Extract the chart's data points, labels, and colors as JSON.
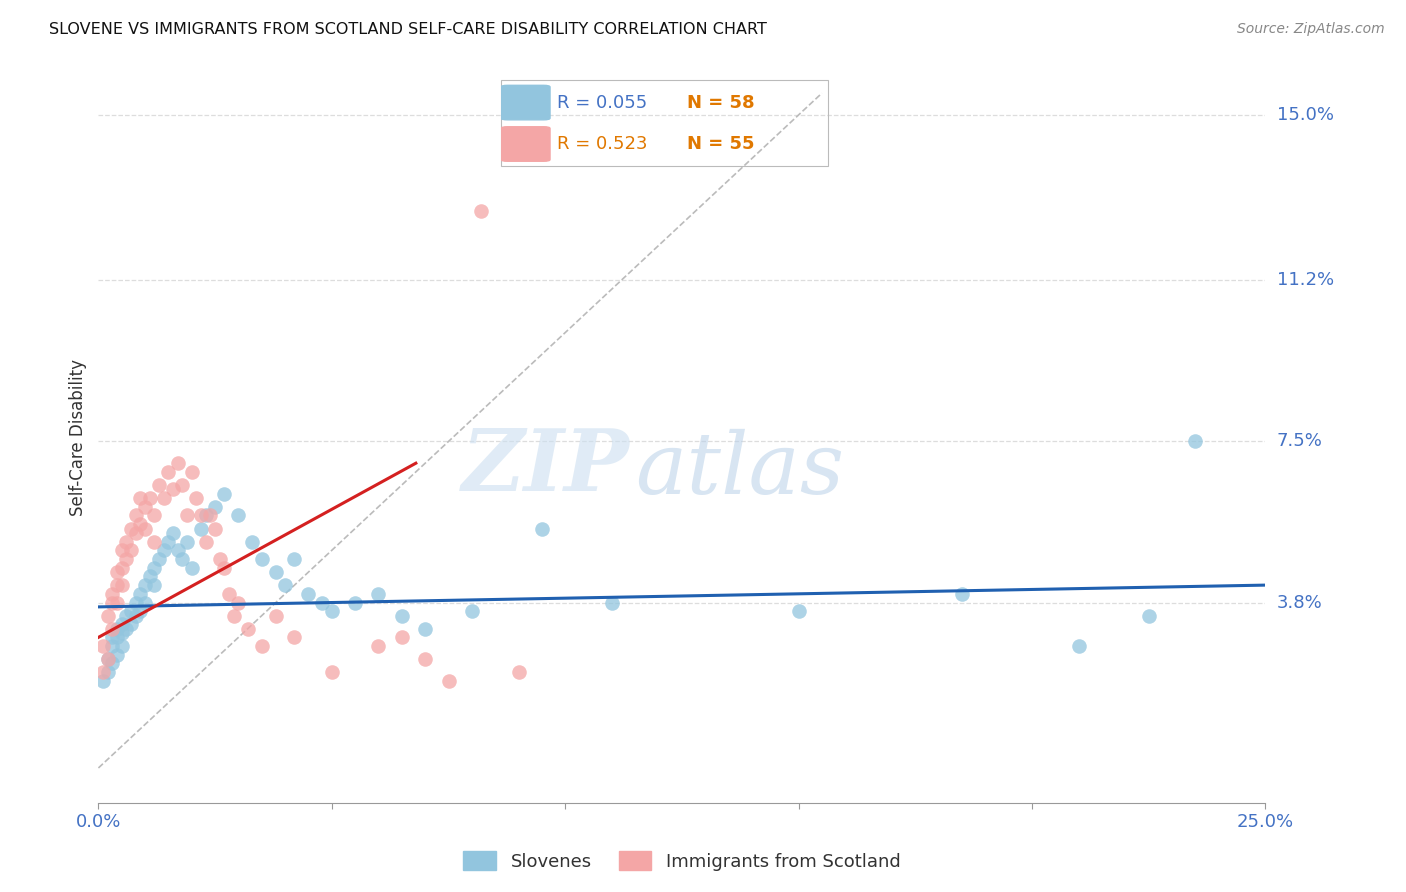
{
  "title": "SLOVENE VS IMMIGRANTS FROM SCOTLAND SELF-CARE DISABILITY CORRELATION CHART",
  "source": "Source: ZipAtlas.com",
  "ylabel": "Self-Care Disability",
  "ytick_vals": [
    0.038,
    0.075,
    0.112,
    0.15
  ],
  "ytick_labels": [
    "3.8%",
    "7.5%",
    "11.2%",
    "15.0%"
  ],
  "xlim": [
    0.0,
    0.25
  ],
  "ylim": [
    -0.008,
    0.16
  ],
  "watermark_zip": "ZIP",
  "watermark_atlas": "atlas",
  "legend_blue_r": "0.055",
  "legend_blue_n": "58",
  "legend_pink_r": "0.523",
  "legend_pink_n": "55",
  "legend_label_blue": "Slovenes",
  "legend_label_pink": "Immigrants from Scotland",
  "blue_color": "#92c5de",
  "pink_color": "#f4a6a6",
  "line_blue_color": "#2060b0",
  "line_pink_color": "#d42020",
  "diagonal_color": "#bbbbbb",
  "grid_color": "#dddddd",
  "blue_scatter_x": [
    0.001,
    0.002,
    0.002,
    0.003,
    0.003,
    0.003,
    0.004,
    0.004,
    0.004,
    0.005,
    0.005,
    0.005,
    0.006,
    0.006,
    0.007,
    0.007,
    0.008,
    0.008,
    0.009,
    0.009,
    0.01,
    0.01,
    0.011,
    0.012,
    0.012,
    0.013,
    0.014,
    0.015,
    0.016,
    0.017,
    0.018,
    0.019,
    0.02,
    0.022,
    0.023,
    0.025,
    0.027,
    0.03,
    0.033,
    0.035,
    0.038,
    0.04,
    0.042,
    0.045,
    0.048,
    0.05,
    0.055,
    0.06,
    0.065,
    0.07,
    0.08,
    0.095,
    0.11,
    0.15,
    0.185,
    0.21,
    0.225,
    0.235
  ],
  "blue_scatter_y": [
    0.02,
    0.025,
    0.022,
    0.03,
    0.028,
    0.024,
    0.032,
    0.03,
    0.026,
    0.033,
    0.031,
    0.028,
    0.035,
    0.032,
    0.036,
    0.033,
    0.038,
    0.035,
    0.04,
    0.036,
    0.042,
    0.038,
    0.044,
    0.046,
    0.042,
    0.048,
    0.05,
    0.052,
    0.054,
    0.05,
    0.048,
    0.052,
    0.046,
    0.055,
    0.058,
    0.06,
    0.063,
    0.058,
    0.052,
    0.048,
    0.045,
    0.042,
    0.048,
    0.04,
    0.038,
    0.036,
    0.038,
    0.04,
    0.035,
    0.032,
    0.036,
    0.055,
    0.038,
    0.036,
    0.04,
    0.028,
    0.035,
    0.075
  ],
  "pink_scatter_x": [
    0.001,
    0.001,
    0.002,
    0.002,
    0.003,
    0.003,
    0.003,
    0.004,
    0.004,
    0.004,
    0.005,
    0.005,
    0.005,
    0.006,
    0.006,
    0.007,
    0.007,
    0.008,
    0.008,
    0.009,
    0.009,
    0.01,
    0.01,
    0.011,
    0.012,
    0.012,
    0.013,
    0.014,
    0.015,
    0.016,
    0.017,
    0.018,
    0.019,
    0.02,
    0.021,
    0.022,
    0.023,
    0.024,
    0.025,
    0.026,
    0.027,
    0.028,
    0.029,
    0.03,
    0.032,
    0.035,
    0.038,
    0.042,
    0.05,
    0.06,
    0.065,
    0.07,
    0.075,
    0.082,
    0.09
  ],
  "pink_scatter_y": [
    0.028,
    0.022,
    0.035,
    0.025,
    0.04,
    0.038,
    0.032,
    0.045,
    0.042,
    0.038,
    0.05,
    0.046,
    0.042,
    0.052,
    0.048,
    0.055,
    0.05,
    0.058,
    0.054,
    0.062,
    0.056,
    0.06,
    0.055,
    0.062,
    0.058,
    0.052,
    0.065,
    0.062,
    0.068,
    0.064,
    0.07,
    0.065,
    0.058,
    0.068,
    0.062,
    0.058,
    0.052,
    0.058,
    0.055,
    0.048,
    0.046,
    0.04,
    0.035,
    0.038,
    0.032,
    0.028,
    0.035,
    0.03,
    0.022,
    0.028,
    0.03,
    0.025,
    0.02,
    0.128,
    0.022
  ],
  "blue_line_x": [
    0.0,
    0.25
  ],
  "blue_line_y": [
    0.037,
    0.042
  ],
  "pink_line_x": [
    0.0,
    0.068
  ],
  "pink_line_y": [
    0.03,
    0.07
  ],
  "diag_line_x": [
    0.0,
    0.155
  ],
  "diag_line_y": [
    0.0,
    0.155
  ]
}
